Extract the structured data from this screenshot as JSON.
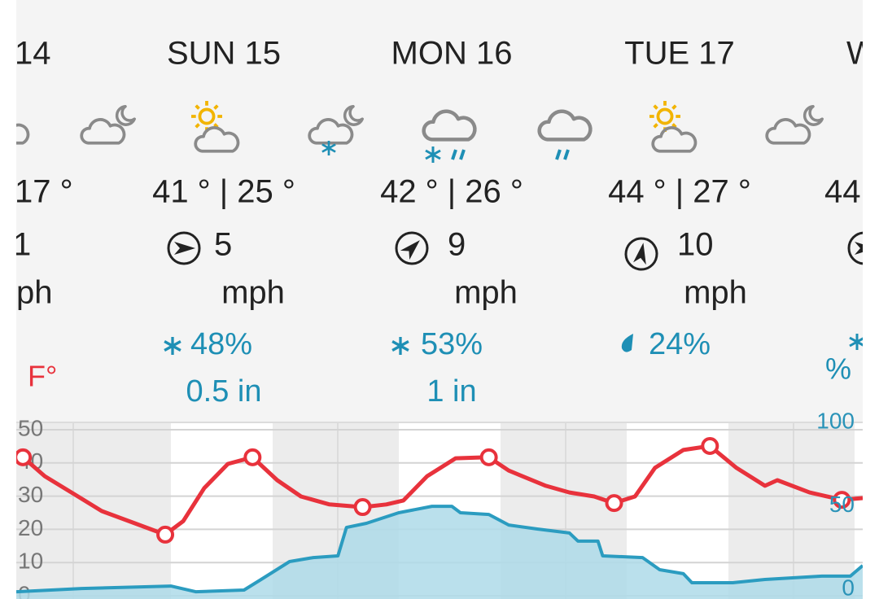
{
  "days": [
    {
      "day": "14",
      "temp": "17 °",
      "wind": "1",
      "wind_unit": "ph"
    },
    {
      "day": "SUN 15",
      "temp": "41 ° | 25 °",
      "wind": "5",
      "wind_unit": "mph",
      "precip_chance": "48%",
      "precip_amount": "0.5 in"
    },
    {
      "day": "MON 16",
      "temp": "42 ° | 26 °",
      "wind": "9",
      "wind_unit": "mph",
      "precip_chance": "53%",
      "precip_amount": "1 in"
    },
    {
      "day": "TUE 17",
      "temp": "44 ° | 27 °",
      "wind": "10",
      "wind_unit": "mph",
      "precip_chance": "24%"
    },
    {
      "day": "W",
      "temp": "44"
    }
  ],
  "chart_data": {
    "type": "line",
    "y_label": "F°",
    "y2_label": "%",
    "xlim": [
      -9.9,
      79.3
    ],
    "ylim": [
      0,
      52.2
    ],
    "yticks": [
      0,
      10,
      20,
      30,
      40,
      50
    ],
    "y2lim": [
      0,
      100
    ],
    "y2ticks": [
      0,
      50,
      100
    ],
    "series": [
      {
        "color": "#e8323c",
        "x": [
          -9.2,
          -6.9,
          -3.4,
          -0.9,
          2.6,
          5.8,
          7.7,
          9.9,
          12.4,
          15.0,
          17.6,
          20.1,
          23.1,
          26.6,
          29.1,
          30.9,
          33.4,
          36.4,
          39.9,
          42.0,
          45.9,
          48.4,
          51.0,
          53.1,
          55.3,
          57.4,
          60.4,
          63.2,
          66.0,
          69.0,
          70.3,
          73.7,
          77.1,
          79.3
        ],
        "values": [
          41.7,
          36.0,
          29.9,
          25.5,
          21.8,
          18.4,
          22.5,
          32.4,
          39.7,
          41.7,
          34.8,
          29.9,
          27.5,
          26.7,
          27.5,
          28.7,
          36.0,
          41.4,
          41.7,
          37.7,
          33.1,
          31.1,
          29.9,
          27.9,
          29.9,
          38.5,
          43.9,
          45.1,
          38.5,
          33.1,
          34.8,
          31.1,
          28.9,
          29.4
        ]
      },
      {
        "color": "#2b9cc0",
        "fill": "#aedbe9",
        "axis": "y2",
        "x": [
          -9.9,
          -3.0,
          6.4,
          9.0,
          14.1,
          15.9,
          18.9,
          21.4,
          24.0,
          24.9,
          27.0,
          30.4,
          33.9,
          36.0,
          36.9,
          39.9,
          42.0,
          45.0,
          48.4,
          49.3,
          51.4,
          51.9,
          56.1,
          57.9,
          60.4,
          61.3,
          65.6,
          69.0,
          75.0,
          78.0,
          79.3
        ],
        "values": [
          2.3,
          4.2,
          5.6,
          2.3,
          3.3,
          9.4,
          19.7,
          22,
          23,
          39.4,
          41.8,
          47.9,
          51.6,
          51.6,
          47.9,
          46.9,
          40.8,
          38.5,
          36.2,
          31.5,
          31.5,
          23,
          22,
          15,
          12.7,
          7.5,
          7.5,
          9.4,
          11.3,
          11.3,
          17.4
        ]
      }
    ]
  }
}
